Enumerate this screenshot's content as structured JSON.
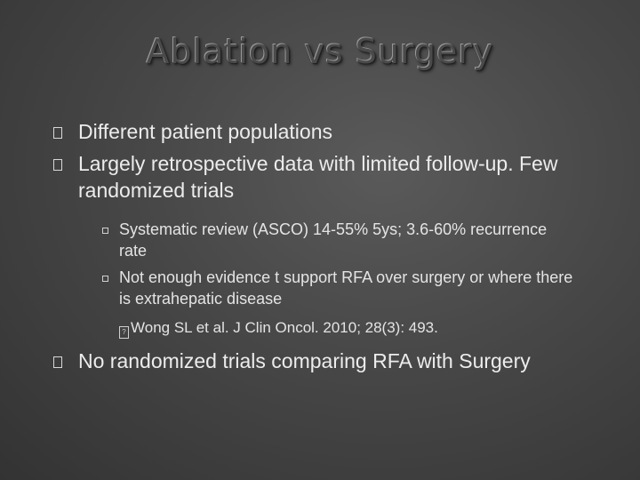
{
  "slide": {
    "title": "Ablation vs Surgery",
    "bullets": [
      {
        "text": "Different patient populations"
      },
      {
        "text": "Largely retrospective data with limited follow-up. Few randomized trials"
      },
      {
        "text": "No randomized trials comparing RFA with Surgery"
      }
    ],
    "sub_bullets": [
      {
        "text": "Systematic review (ASCO) 14-55% 5ys; 3.6-60% recurrence rate"
      },
      {
        "text": "Not enough evidence t support RFA over surgery or where there is extrahepatic disease"
      }
    ],
    "citation": "Wong SL et al. J Clin Oncol. 2010; 28(3): 493.",
    "bullet_glyph_name": "checkbox-bullet-icon",
    "colors": {
      "background": "#474747",
      "text": "#e6e6e6",
      "title": "#4a4a4a"
    }
  }
}
